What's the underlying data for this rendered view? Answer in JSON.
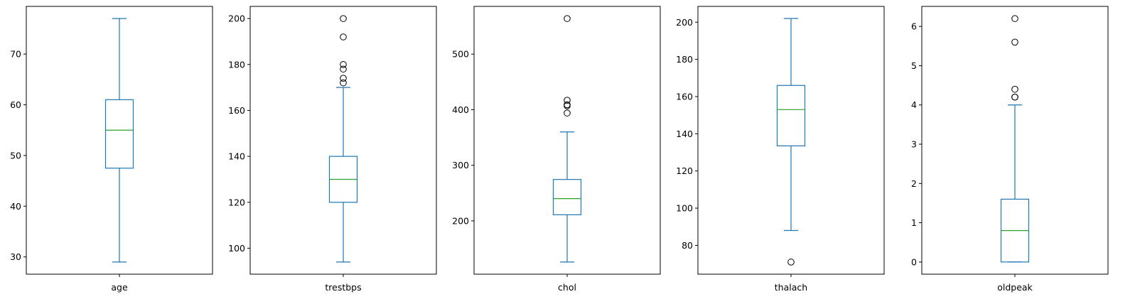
{
  "chart_data": [
    {
      "type": "box",
      "category": "age",
      "ylim": [
        26.6,
        79.4
      ],
      "ticks": [
        30,
        40,
        50,
        60,
        70
      ],
      "whisker_low": 29,
      "q1": 47.5,
      "median": 55,
      "q3": 61,
      "whisker_high": 77,
      "outliers": []
    },
    {
      "type": "box",
      "category": "trestbps",
      "ylim": [
        88.7,
        205.3
      ],
      "ticks": [
        100,
        120,
        140,
        160,
        180,
        200
      ],
      "whisker_low": 94,
      "q1": 120,
      "median": 130,
      "q3": 140,
      "whisker_high": 170,
      "outliers": [
        172,
        174,
        178,
        180,
        192,
        200
      ]
    },
    {
      "type": "box",
      "category": "chol",
      "ylim": [
        104.1,
        585.9
      ],
      "ticks": [
        200,
        300,
        400,
        500
      ],
      "whisker_low": 126,
      "q1": 211,
      "median": 240,
      "q3": 274.5,
      "whisker_high": 360,
      "outliers": [
        394,
        407,
        409,
        417,
        564
      ]
    },
    {
      "type": "box",
      "category": "thalach",
      "ylim": [
        64.5,
        208.5
      ],
      "ticks": [
        80,
        100,
        120,
        140,
        160,
        180,
        200
      ],
      "whisker_low": 88,
      "q1": 133.5,
      "median": 153,
      "q3": 166,
      "whisker_high": 202,
      "outliers": [
        71
      ]
    },
    {
      "type": "box",
      "category": "oldpeak",
      "ylim": [
        -0.31,
        6.51
      ],
      "ticks": [
        0,
        1,
        2,
        3,
        4,
        5,
        6
      ],
      "whisker_low": 0,
      "q1": 0,
      "median": 0.8,
      "q3": 1.6,
      "whisker_high": 4.0,
      "outliers": [
        4.2,
        4.2,
        4.4,
        5.6,
        6.2
      ]
    }
  ],
  "colors": {
    "box": "#1f77b4",
    "median": "#2ca02c",
    "axes": "#000000"
  }
}
